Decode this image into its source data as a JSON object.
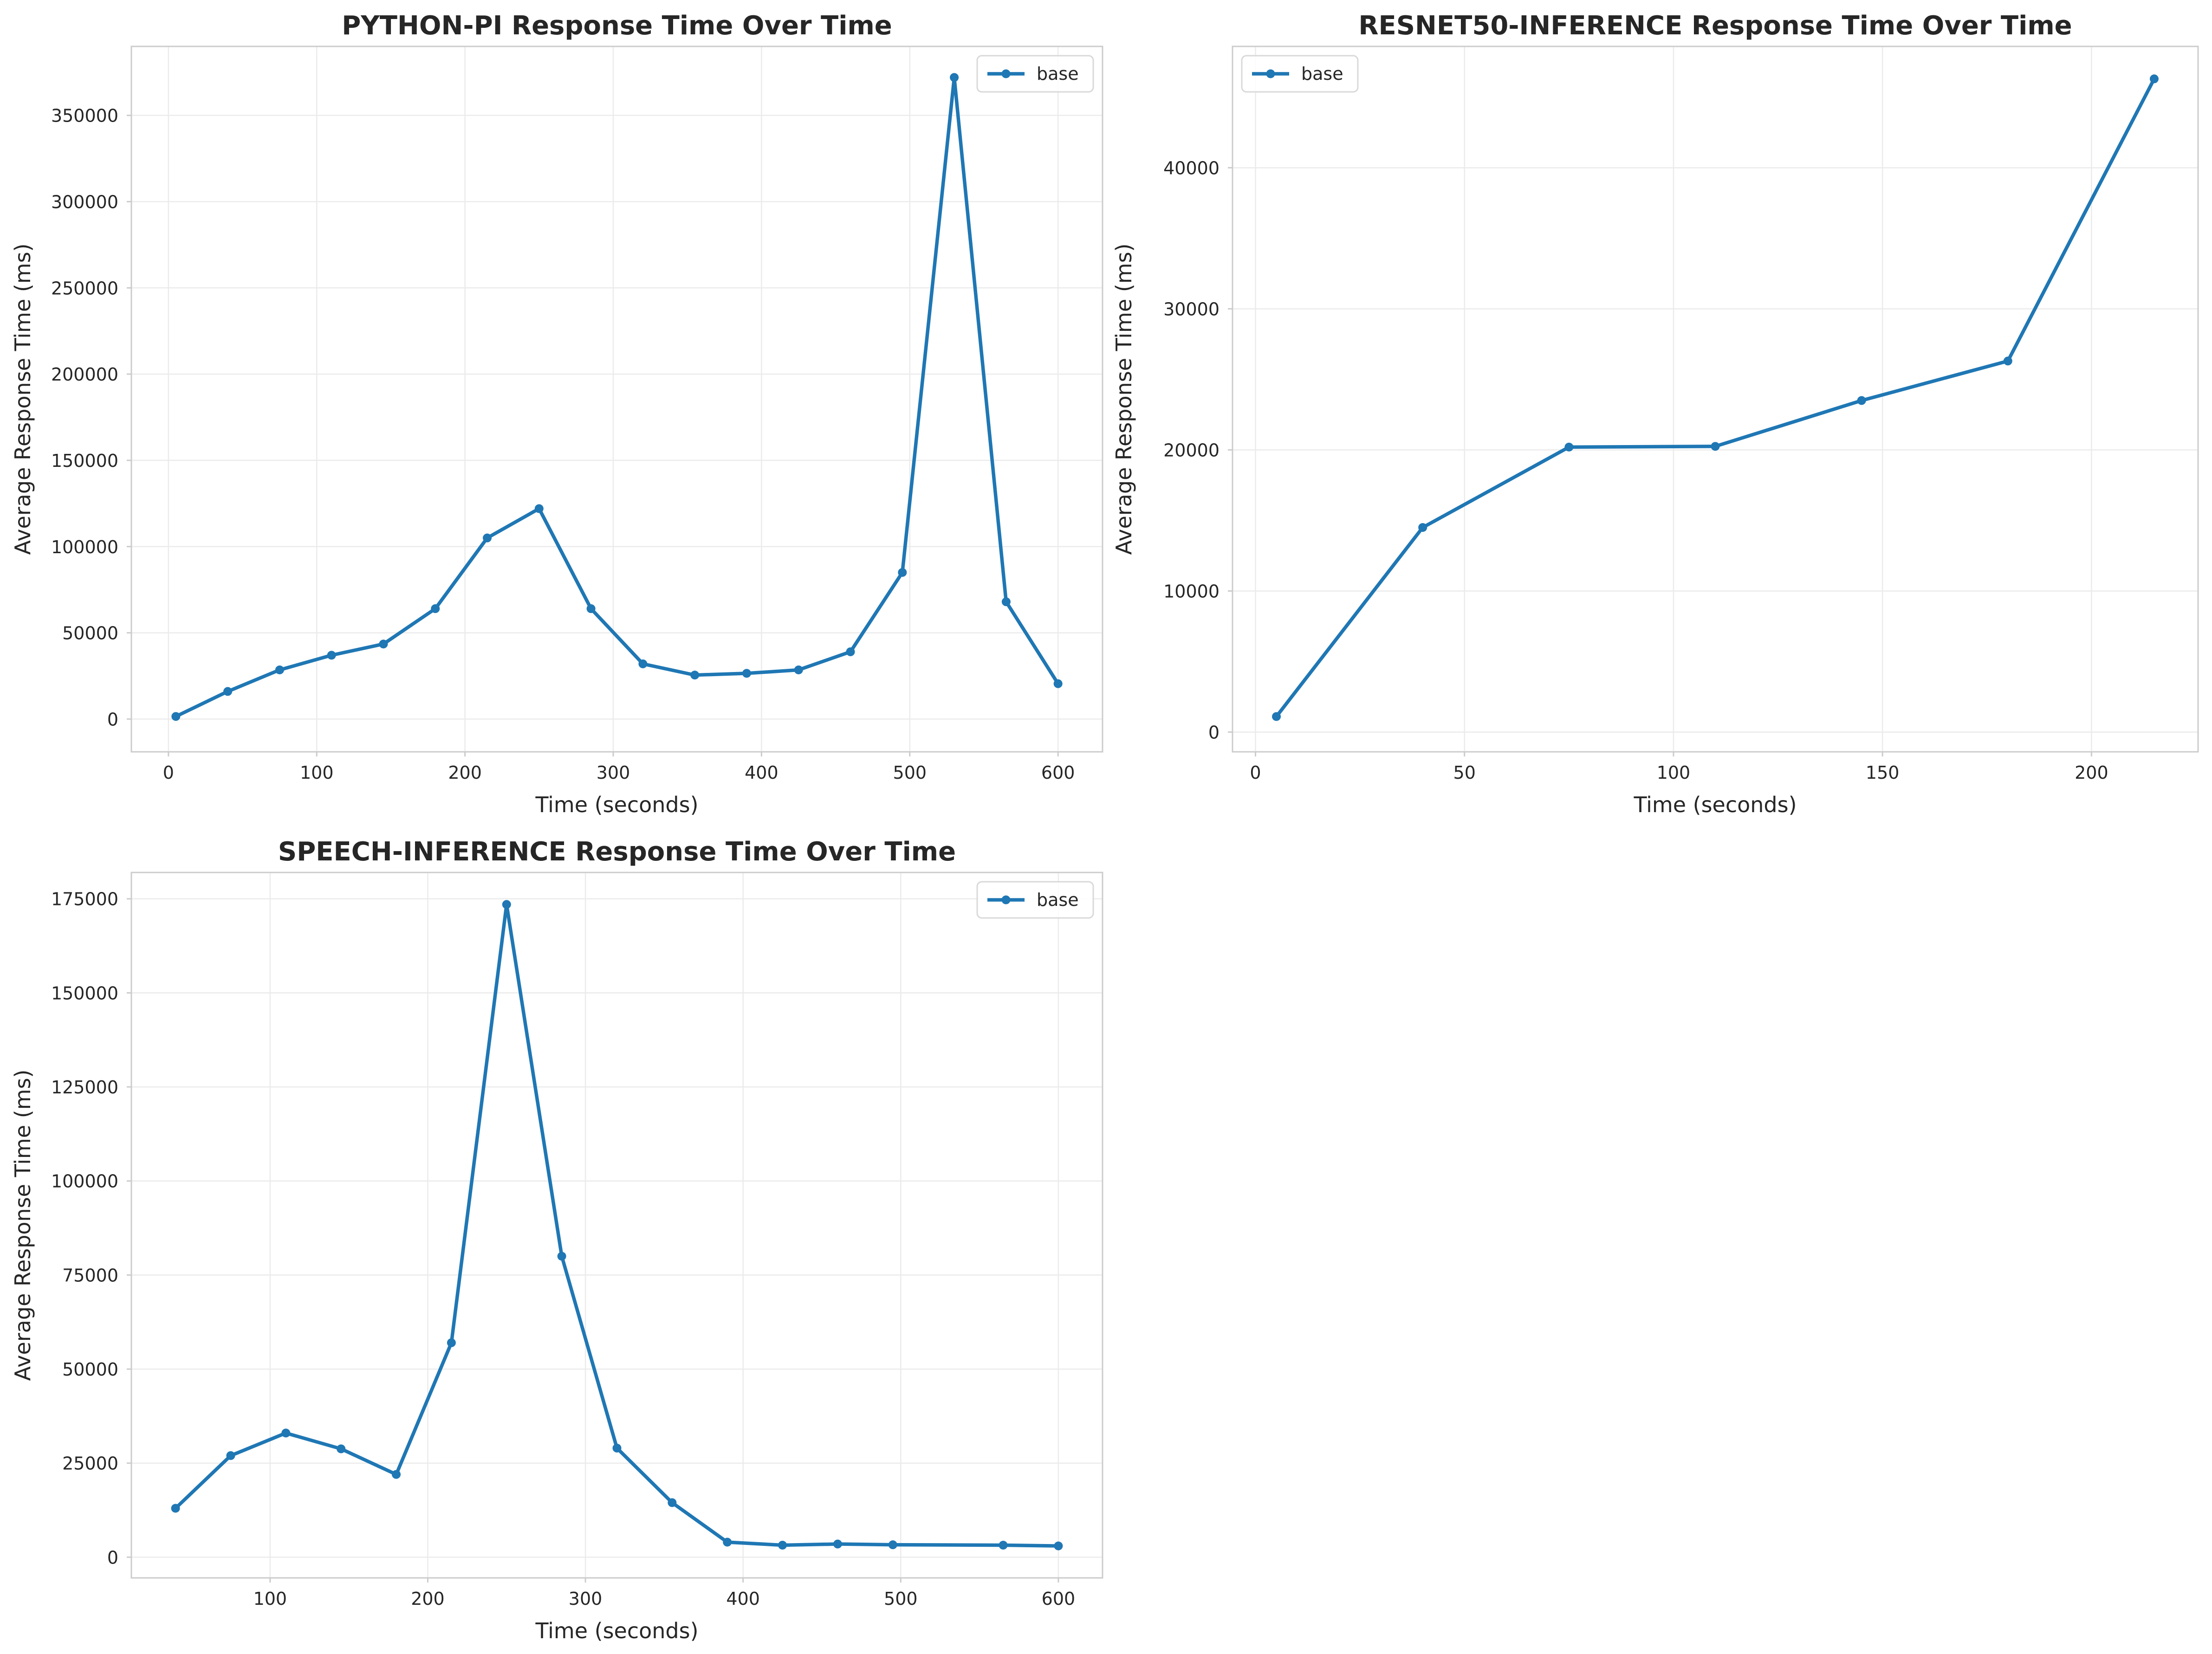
{
  "colors": {
    "series": "#1f77b4",
    "grid": "#ebebeb",
    "spine": "#cccccc",
    "text": "#262626"
  },
  "chart_data": [
    {
      "type": "line",
      "title": "PYTHON-PI Response Time Over Time",
      "xlabel": "Time (seconds)",
      "ylabel": "Average Response Time (ms)",
      "xlim": [
        -25,
        630
      ],
      "ylim": [
        -19000,
        390000
      ],
      "xticks": [
        0,
        100,
        200,
        300,
        400,
        500,
        600
      ],
      "yticks": [
        0,
        50000,
        100000,
        150000,
        200000,
        250000,
        300000,
        350000
      ],
      "grid": true,
      "legend": "top-right",
      "series": [
        {
          "name": "base",
          "x": [
            5,
            40,
            75,
            110,
            145,
            180,
            215,
            250,
            285,
            320,
            355,
            390,
            425,
            460,
            495,
            530,
            565,
            600
          ],
          "y": [
            1500,
            16000,
            28500,
            37000,
            43500,
            64000,
            105000,
            122000,
            64000,
            32000,
            25500,
            26500,
            28500,
            39000,
            85000,
            372000,
            68000,
            20500
          ]
        }
      ]
    },
    {
      "type": "line",
      "title": "RESNET50-INFERENCE Response Time Over Time",
      "xlabel": "Time (seconds)",
      "ylabel": "Average Response Time (ms)",
      "xlim": [
        -5.5,
        225.5
      ],
      "ylim": [
        -1400,
        48600
      ],
      "xticks": [
        0,
        50,
        100,
        150,
        200
      ],
      "yticks": [
        0,
        10000,
        20000,
        30000,
        40000
      ],
      "grid": true,
      "legend": "top-left",
      "series": [
        {
          "name": "base",
          "x": [
            5,
            40,
            75,
            110,
            145,
            180,
            215
          ],
          "y": [
            1100,
            14500,
            20200,
            20250,
            23500,
            26300,
            46300
          ]
        }
      ]
    },
    {
      "type": "line",
      "title": "SPEECH-INFERENCE Response Time Over Time",
      "xlabel": "Time (seconds)",
      "ylabel": "Average Response Time (ms)",
      "xlim": [
        12,
        628
      ],
      "ylim": [
        -5500,
        182000
      ],
      "xticks": [
        100,
        200,
        300,
        400,
        500,
        600
      ],
      "yticks": [
        0,
        25000,
        50000,
        75000,
        100000,
        125000,
        150000,
        175000
      ],
      "grid": true,
      "legend": "top-right",
      "series": [
        {
          "name": "base",
          "x": [
            40,
            75,
            110,
            145,
            180,
            215,
            250,
            285,
            320,
            355,
            390,
            425,
            460,
            495,
            565,
            600
          ],
          "y": [
            13000,
            27000,
            33000,
            28800,
            22000,
            57000,
            173500,
            80000,
            29000,
            14500,
            4000,
            3200,
            3500,
            3300,
            3200,
            3000
          ]
        }
      ]
    }
  ]
}
